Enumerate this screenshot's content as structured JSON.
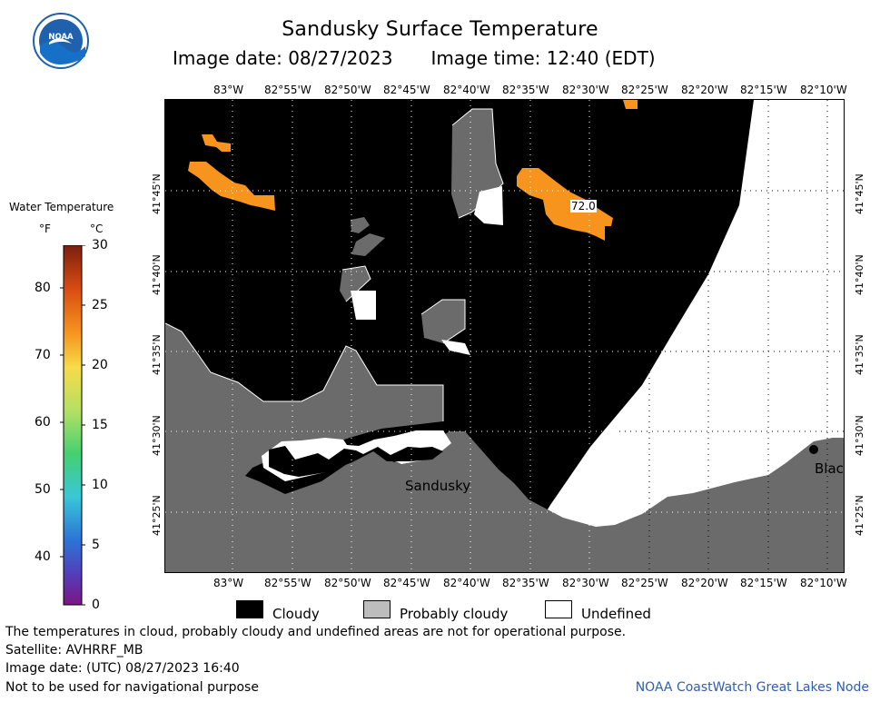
{
  "header": {
    "title": "Sandusky Surface Temperature",
    "image_date": "Image date: 08/27/2023",
    "image_time": "Image time: 12:40 (EDT)"
  },
  "logo": {
    "text": "NOAA",
    "icon": "noaa-logo-icon"
  },
  "legend": {
    "title": "Water Temperature",
    "unit_f": "°F",
    "unit_c": "°C",
    "ticks_f": [
      "80",
      "70",
      "60",
      "50",
      "40"
    ],
    "ticks_c": [
      "30",
      "25",
      "20",
      "15",
      "10",
      "5",
      "0"
    ]
  },
  "map": {
    "lon_labels": [
      "83°W",
      "82°55'W",
      "82°50'W",
      "82°45'W",
      "82°40'W",
      "82°35'W",
      "82°30'W",
      "82°25'W",
      "82°20'W",
      "82°15'W",
      "82°10'W"
    ],
    "lat_labels": [
      "41°45'N",
      "41°40'N",
      "41°35'N",
      "41°30'N",
      "41°25'N"
    ],
    "places": {
      "sandusky": "Sandusky",
      "blac": "Blac"
    },
    "temperature_label": "72.0",
    "colors": {
      "cloudy": "#000000",
      "probably_cloudy": "#6b6b6b",
      "undefined": "#ffffff",
      "temperature": "#f7941d"
    }
  },
  "map_legend": {
    "cloudy": "Cloudy",
    "probably_cloudy": "Probably cloudy",
    "undefined": "Undefined"
  },
  "footer": {
    "note": "The temperatures in cloud, probably cloudy and undefined areas are not for operational purpose.",
    "satellite": "Satellite: AVHRRF_MB",
    "utc_date": "Image date: (UTC) 08/27/2023  16:40",
    "disclaimer": "Not to be used for navigational purpose",
    "credit": "NOAA CoastWatch Great Lakes Node"
  }
}
